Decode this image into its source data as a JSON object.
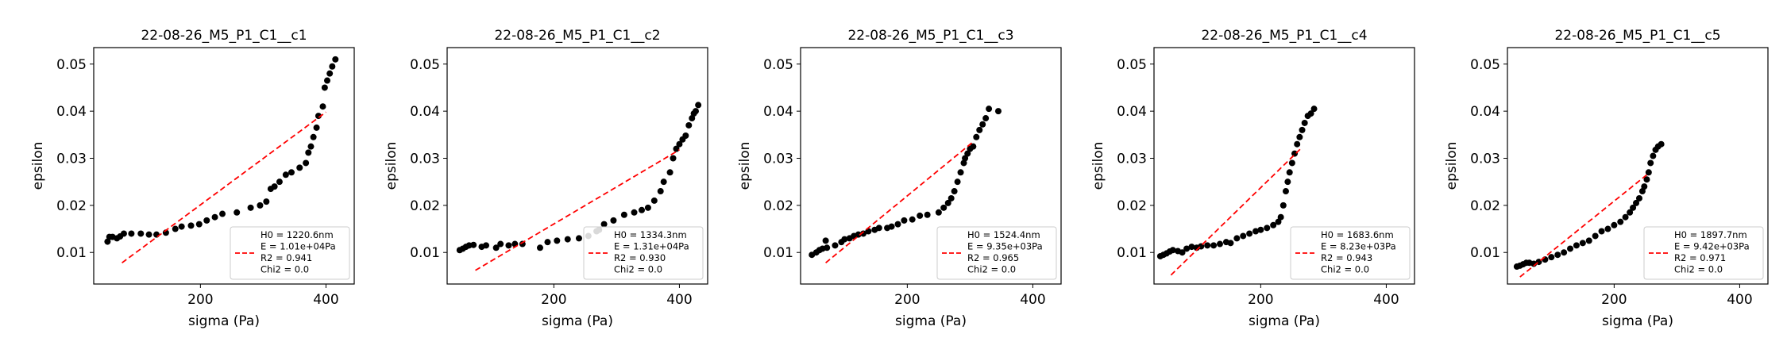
{
  "chart_data": [
    {
      "type": "scatter",
      "title": "22-08-26_M5_P1_C1__c1",
      "xlabel": "sigma (Pa)",
      "ylabel": "epsilon",
      "xlim": [
        30,
        445
      ],
      "ylim": [
        0.0033,
        0.0535
      ],
      "xticks": [
        200,
        400
      ],
      "yticks": [
        0.01,
        0.02,
        0.03,
        0.04,
        0.05
      ],
      "legend_position": "lower-right",
      "legend": [
        "H0 = 1220.6nm",
        "E = 1.01e+04Pa",
        "R2 = 0.941",
        "Chi2 = 0.0"
      ],
      "fit": {
        "x": [
          75,
          400
        ],
        "y": [
          0.0078,
          0.0398
        ]
      },
      "series": [
        {
          "points": [
            [
              52,
              0.0123
            ],
            [
              55,
              0.0133
            ],
            [
              60,
              0.0133
            ],
            [
              67,
              0.013
            ],
            [
              72,
              0.0134
            ],
            [
              78,
              0.014
            ],
            [
              90,
              0.014
            ],
            [
              105,
              0.014
            ],
            [
              118,
              0.0138
            ],
            [
              130,
              0.0138
            ],
            [
              145,
              0.0142
            ],
            [
              160,
              0.015
            ],
            [
              170,
              0.0155
            ],
            [
              185,
              0.0157
            ],
            [
              198,
              0.016
            ],
            [
              210,
              0.0168
            ],
            [
              223,
              0.0175
            ],
            [
              235,
              0.0182
            ],
            [
              258,
              0.0185
            ],
            [
              280,
              0.0195
            ],
            [
              295,
              0.02
            ],
            [
              305,
              0.0208
            ],
            [
              312,
              0.0235
            ],
            [
              318,
              0.024
            ],
            [
              326,
              0.025
            ],
            [
              336,
              0.0265
            ],
            [
              345,
              0.027
            ],
            [
              358,
              0.028
            ],
            [
              368,
              0.029
            ],
            [
              372,
              0.0312
            ],
            [
              376,
              0.0325
            ],
            [
              380,
              0.0345
            ],
            [
              385,
              0.0365
            ],
            [
              388,
              0.039
            ],
            [
              395,
              0.041
            ],
            [
              398,
              0.045
            ],
            [
              402,
              0.0465
            ],
            [
              406,
              0.048
            ],
            [
              410,
              0.0495
            ],
            [
              415,
              0.051
            ]
          ]
        }
      ]
    },
    {
      "type": "scatter",
      "title": "22-08-26_M5_P1_C1__c2",
      "xlabel": "sigma (Pa)",
      "ylabel": "epsilon",
      "xlim": [
        30,
        445
      ],
      "ylim": [
        0.0033,
        0.0535
      ],
      "xticks": [
        200,
        400
      ],
      "yticks": [
        0.01,
        0.02,
        0.03,
        0.04,
        0.05
      ],
      "legend_position": "lower-right",
      "legend": [
        "H0 = 1334.3nm",
        "E = 1.31e+04Pa",
        "R2 = 0.930",
        "Chi2 = 0.0"
      ],
      "fit": {
        "x": [
          75,
          400
        ],
        "y": [
          0.0062,
          0.0318
        ]
      },
      "series": [
        {
          "points": [
            [
              50,
              0.0105
            ],
            [
              55,
              0.0108
            ],
            [
              60,
              0.0112
            ],
            [
              65,
              0.0115
            ],
            [
              72,
              0.0116
            ],
            [
              85,
              0.0112
            ],
            [
              92,
              0.0115
            ],
            [
              108,
              0.011
            ],
            [
              115,
              0.0118
            ],
            [
              128,
              0.0115
            ],
            [
              138,
              0.0118
            ],
            [
              150,
              0.0118
            ],
            [
              178,
              0.011
            ],
            [
              190,
              0.0122
            ],
            [
              205,
              0.0125
            ],
            [
              222,
              0.0128
            ],
            [
              240,
              0.013
            ],
            [
              255,
              0.0135
            ],
            [
              268,
              0.0145
            ],
            [
              272,
              0.0148
            ],
            [
              280,
              0.016
            ],
            [
              295,
              0.0168
            ],
            [
              312,
              0.018
            ],
            [
              328,
              0.0185
            ],
            [
              340,
              0.019
            ],
            [
              350,
              0.0195
            ],
            [
              360,
              0.021
            ],
            [
              370,
              0.023
            ],
            [
              375,
              0.025
            ],
            [
              385,
              0.027
            ],
            [
              390,
              0.03
            ],
            [
              395,
              0.032
            ],
            [
              400,
              0.033
            ],
            [
              405,
              0.034
            ],
            [
              410,
              0.0348
            ],
            [
              415,
              0.037
            ],
            [
              420,
              0.0385
            ],
            [
              423,
              0.0395
            ],
            [
              426,
              0.04
            ],
            [
              430,
              0.0413
            ]
          ]
        }
      ]
    },
    {
      "type": "scatter",
      "title": "22-08-26_M5_P1_C1__c3",
      "xlabel": "sigma (Pa)",
      "ylabel": "epsilon",
      "xlim": [
        30,
        445
      ],
      "ylim": [
        0.0033,
        0.0535
      ],
      "xticks": [
        200,
        400
      ],
      "yticks": [
        0.01,
        0.02,
        0.03,
        0.04,
        0.05
      ],
      "legend_position": "lower-right",
      "legend": [
        "H0 = 1524.4nm",
        "E = 9.35e+03Pa",
        "R2 = 0.965",
        "Chi2 = 0.0"
      ],
      "fit": {
        "x": [
          70,
          305
        ],
        "y": [
          0.0078,
          0.0335
        ]
      },
      "series": [
        {
          "points": [
            [
              48,
              0.0095
            ],
            [
              55,
              0.01
            ],
            [
              60,
              0.0105
            ],
            [
              65,
              0.0108
            ],
            [
              72,
              0.011
            ],
            [
              70,
              0.0125
            ],
            [
              85,
              0.0115
            ],
            [
              95,
              0.0122
            ],
            [
              100,
              0.0128
            ],
            [
              108,
              0.013
            ],
            [
              115,
              0.0135
            ],
            [
              122,
              0.0138
            ],
            [
              130,
              0.014
            ],
            [
              138,
              0.0145
            ],
            [
              148,
              0.0148
            ],
            [
              155,
              0.0152
            ],
            [
              168,
              0.0152
            ],
            [
              175,
              0.0155
            ],
            [
              185,
              0.016
            ],
            [
              195,
              0.0168
            ],
            [
              208,
              0.017
            ],
            [
              220,
              0.0178
            ],
            [
              232,
              0.018
            ],
            [
              250,
              0.0185
            ],
            [
              258,
              0.0195
            ],
            [
              265,
              0.0205
            ],
            [
              270,
              0.0215
            ],
            [
              275,
              0.023
            ],
            [
              280,
              0.025
            ],
            [
              285,
              0.027
            ],
            [
              290,
              0.029
            ],
            [
              292,
              0.03
            ],
            [
              296,
              0.031
            ],
            [
              300,
              0.032
            ],
            [
              305,
              0.0325
            ],
            [
              310,
              0.0345
            ],
            [
              315,
              0.036
            ],
            [
              320,
              0.0372
            ],
            [
              325,
              0.0385
            ],
            [
              330,
              0.0405
            ],
            [
              345,
              0.04
            ]
          ]
        }
      ]
    },
    {
      "type": "scatter",
      "title": "22-08-26_M5_P1_C1__c4",
      "xlabel": "sigma (Pa)",
      "ylabel": "epsilon",
      "xlim": [
        30,
        445
      ],
      "ylim": [
        0.0033,
        0.0535
      ],
      "xticks": [
        200,
        400
      ],
      "yticks": [
        0.01,
        0.02,
        0.03,
        0.04,
        0.05
      ],
      "legend_position": "lower-right",
      "legend": [
        "H0 = 1683.6nm",
        "E = 8.23e+03Pa",
        "R2 = 0.943",
        "Chi2 = 0.0"
      ],
      "fit": {
        "x": [
          57,
          265
        ],
        "y": [
          0.0052,
          0.0322
        ]
      },
      "series": [
        {
          "points": [
            [
              40,
              0.0092
            ],
            [
              45,
              0.0095
            ],
            [
              50,
              0.0098
            ],
            [
              55,
              0.0102
            ],
            [
              60,
              0.0105
            ],
            [
              68,
              0.0103
            ],
            [
              75,
              0.01
            ],
            [
              82,
              0.0108
            ],
            [
              90,
              0.0112
            ],
            [
              98,
              0.011
            ],
            [
              105,
              0.0113
            ],
            [
              115,
              0.0115
            ],
            [
              125,
              0.0115
            ],
            [
              135,
              0.0118
            ],
            [
              145,
              0.0122
            ],
            [
              152,
              0.012
            ],
            [
              162,
              0.013
            ],
            [
              172,
              0.0135
            ],
            [
              182,
              0.014
            ],
            [
              192,
              0.0145
            ],
            [
              200,
              0.0148
            ],
            [
              210,
              0.0152
            ],
            [
              220,
              0.0158
            ],
            [
              228,
              0.0165
            ],
            [
              232,
              0.0175
            ],
            [
              236,
              0.02
            ],
            [
              240,
              0.023
            ],
            [
              243,
              0.025
            ],
            [
              246,
              0.027
            ],
            [
              250,
              0.029
            ],
            [
              254,
              0.031
            ],
            [
              258,
              0.033
            ],
            [
              262,
              0.0345
            ],
            [
              266,
              0.036
            ],
            [
              270,
              0.0375
            ],
            [
              275,
              0.039
            ],
            [
              280,
              0.0395
            ],
            [
              285,
              0.0405
            ]
          ]
        }
      ]
    },
    {
      "type": "scatter",
      "title": "22-08-26_M5_P1_C1__c5",
      "xlabel": "sigma (Pa)",
      "ylabel": "epsilon",
      "xlim": [
        30,
        445
      ],
      "ylim": [
        0.0033,
        0.0535
      ],
      "xticks": [
        200,
        400
      ],
      "yticks": [
        0.01,
        0.02,
        0.03,
        0.04,
        0.05
      ],
      "legend_position": "lower-right",
      "legend": [
        "H0 = 1897.7nm",
        "E = 9.42e+03Pa",
        "R2 = 0.971",
        "Chi2 = 0.0"
      ],
      "fit": {
        "x": [
          50,
          255
        ],
        "y": [
          0.0048,
          0.0268
        ]
      },
      "series": [
        {
          "points": [
            [
              45,
              0.007
            ],
            [
              50,
              0.0072
            ],
            [
              55,
              0.0075
            ],
            [
              60,
              0.0078
            ],
            [
              65,
              0.0078
            ],
            [
              72,
              0.0076
            ],
            [
              80,
              0.008
            ],
            [
              90,
              0.0085
            ],
            [
              100,
              0.009
            ],
            [
              110,
              0.0095
            ],
            [
              120,
              0.01
            ],
            [
              130,
              0.0108
            ],
            [
              140,
              0.0115
            ],
            [
              150,
              0.012
            ],
            [
              160,
              0.0125
            ],
            [
              170,
              0.0135
            ],
            [
              180,
              0.0145
            ],
            [
              190,
              0.015
            ],
            [
              200,
              0.0158
            ],
            [
              210,
              0.0165
            ],
            [
              218,
              0.0175
            ],
            [
              225,
              0.0185
            ],
            [
              230,
              0.0195
            ],
            [
              235,
              0.0205
            ],
            [
              240,
              0.0215
            ],
            [
              245,
              0.023
            ],
            [
              248,
              0.024
            ],
            [
              252,
              0.0255
            ],
            [
              255,
              0.027
            ],
            [
              258,
              0.029
            ],
            [
              262,
              0.0305
            ],
            [
              266,
              0.0318
            ],
            [
              270,
              0.0325
            ],
            [
              275,
              0.033
            ]
          ]
        }
      ]
    }
  ]
}
